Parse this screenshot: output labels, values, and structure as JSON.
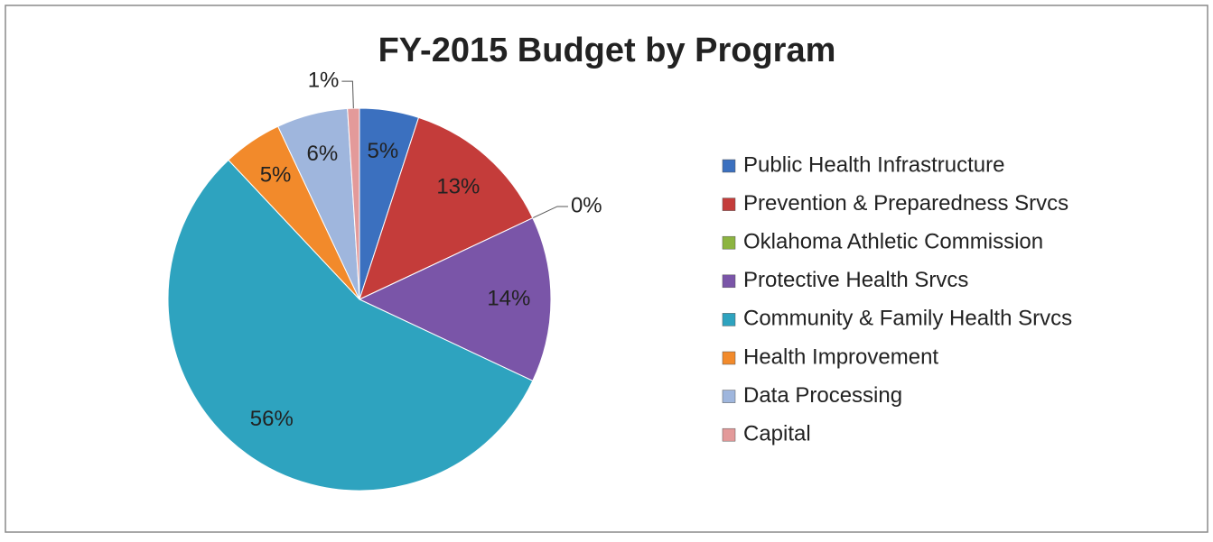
{
  "chart_data": {
    "type": "pie",
    "title": "FY-2015 Budget by Program",
    "categories": [
      "Public Health Infrastructure",
      "Prevention & Preparedness Srvcs",
      "Oklahoma Athletic Commission",
      "Protective Health Srvcs",
      "Community & Family Health Srvcs",
      "Health Improvement",
      "Data Processing",
      "Capital"
    ],
    "values": [
      5,
      13,
      0,
      14,
      56,
      5,
      6,
      1
    ],
    "value_labels": [
      "5%",
      "13%",
      "0%",
      "14%",
      "56%",
      "5%",
      "6%",
      "1%"
    ],
    "colors": [
      "#3b70bf",
      "#c43c3a",
      "#8cb440",
      "#7a55a8",
      "#2ea3bf",
      "#f28a2b",
      "#9fb6dd",
      "#e39a9a"
    ],
    "legend": "right"
  }
}
